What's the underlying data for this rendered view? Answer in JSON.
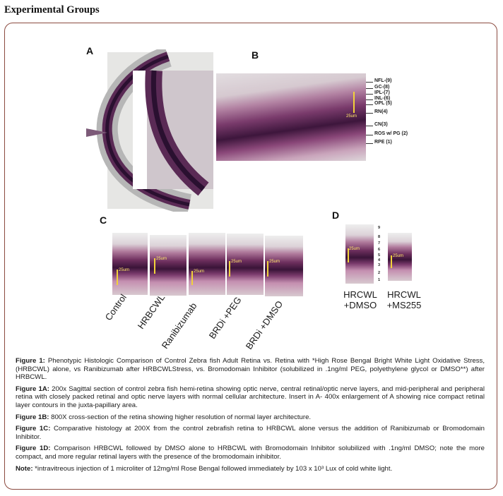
{
  "heading": "Experimental Groups",
  "figure": {
    "panels": {
      "a": "A",
      "b": "B",
      "c": "C",
      "d": "D"
    },
    "panel_b": {
      "scale_label": "25um",
      "layer_labels": [
        "NFL-(9)",
        "GC-(8)",
        "IPL-(7)",
        "INL-(6)",
        "OPL (5)",
        "RN(4)",
        "CN(3)",
        "ROS w/ PG (2)",
        "RPE (1)"
      ]
    },
    "panel_c": {
      "scale_label": "25um",
      "group_labels": [
        "Control",
        "HRBCWL",
        "Ranibizumab",
        "BRDi +PEG",
        "BRDi +DMSO"
      ]
    },
    "panel_d": {
      "scale_label": "25um",
      "layer_numbers": [
        "9",
        "8",
        "7",
        "6",
        "5",
        "4",
        "3",
        "2",
        "1"
      ],
      "group_labels": [
        {
          "line1": "HRCWL",
          "line2": "+DMSO"
        },
        {
          "line1": "HRCWL",
          "line2": "+MS255"
        }
      ]
    }
  },
  "captions": [
    {
      "label": "Figure 1:",
      "text": " Phenotypic Histologic Comparison of Control Zebra fish Adult Retina vs. Retina with *High Rose Bengal Bright White Light Oxidative Stress, (HRBCWL) alone, vs Ranibizumab after HRBCWLStress, vs. Bromodomain Inhibitor (solubilized in .1ng/ml PEG, polyethylene glycol or DMSO**) after HRBCWL."
    },
    {
      "label": "Figure 1A:",
      "text": " 200x Sagittal section of control zebra fish hemi-retina showing optic nerve, central retinal/optic nerve layers, and mid-peripheral and peripheral retina with closely packed retinal and optic nerve layers with normal cellular architecture. Insert in A- 400x enlargement of A showing nice compact retinal layer contours in the juxta-papillary area."
    },
    {
      "label": "Figure 1B:",
      "text": " 800X cross-section of the retina showing higher resolution of normal layer architecture."
    },
    {
      "label": "Figure 1C:",
      "text": " Comparative histology at 200X from the control zebrafish retina to HRBCWL alone versus the addition of Ranibizumab or Bromodomain Inhibitor."
    },
    {
      "label": "Figure 1D:",
      "text": " Comparison HRBCWL followed by DMSO alone to HRBCWL with Bromodomain Inhibitor solubilized with .1ng/ml DMSO; note the more compact, and more regular retinal layers with the presence of the bromodomain inhibitor."
    },
    {
      "label": "Note:",
      "text": " *intravitreous injection of 1 microliter of 12mg/ml Rose Bengal followed immediately by 103 x 10³ Lux of cold white light."
    }
  ]
}
